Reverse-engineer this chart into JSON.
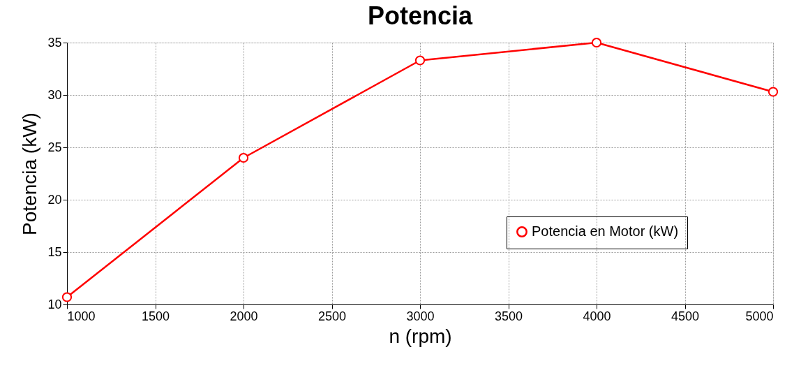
{
  "chart_data": {
    "type": "line",
    "title": "Potencia",
    "xlabel": "n (rpm)",
    "ylabel": "Potencia (kW)",
    "x": [
      1000,
      2000,
      3000,
      4000,
      5000
    ],
    "series": [
      {
        "name": "Potencia en Motor (kW)",
        "color": "#ff0000",
        "values": [
          10.7,
          24.0,
          33.3,
          35.0,
          30.3
        ]
      }
    ],
    "xlim": [
      1000,
      5000
    ],
    "xticks": [
      1000,
      1500,
      2000,
      2500,
      3000,
      3500,
      4000,
      4500,
      5000
    ],
    "ylim": [
      10,
      35
    ],
    "yticks": [
      10,
      15,
      20,
      25,
      30,
      35
    ],
    "grid": true,
    "legend": "right",
    "marker": "circle",
    "line_style": "solid"
  }
}
